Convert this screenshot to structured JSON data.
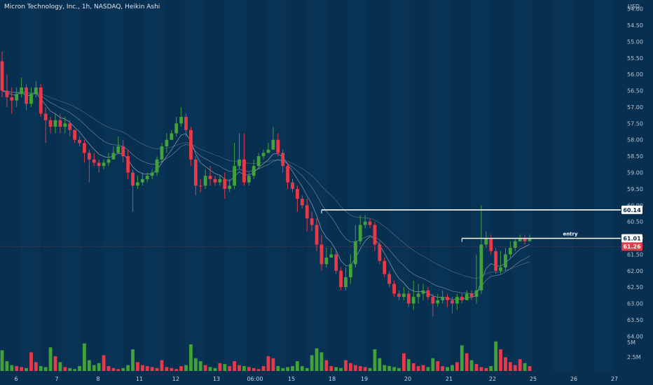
{
  "header": {
    "title": "Micron Technology, Inc., 1h, NASDAQ, Heikin Ashi",
    "currency": "USD"
  },
  "chart_data": {
    "type": "candlestick",
    "chart_style": "Heikin Ashi",
    "timeframe": "1h",
    "y_axis_inverted": true,
    "ylim": [
      53.9,
      64.1
    ],
    "y_ticks": [
      "54.00",
      "54.50",
      "55.00",
      "55.50",
      "56.00",
      "56.50",
      "57.00",
      "57.50",
      "58.00",
      "58.50",
      "59.00",
      "59.50",
      "60.00",
      "60.50",
      "61.00",
      "61.50",
      "62.00",
      "62.50",
      "63.00",
      "63.50",
      "64.00"
    ],
    "x_tick_labels": [
      "6",
      "7",
      "8",
      "11",
      "12",
      "13",
      "06:00",
      "15",
      "18",
      "19",
      "20",
      "21",
      "22",
      "25",
      "26",
      "27"
    ],
    "volume_axis_labels": [
      "5M",
      "2.5M"
    ],
    "colors": {
      "background": "#072f50",
      "up": "#41a23a",
      "down": "#e8394a",
      "line": "#ffffff",
      "price_badge": "#e8394a",
      "level_badge": "#ffffff"
    },
    "ohlc": [
      [
        55.6,
        56.5,
        55.3,
        56.7
      ],
      [
        56.5,
        56.7,
        56.0,
        57.0
      ],
      [
        56.7,
        56.8,
        56.4,
        57.2
      ],
      [
        56.8,
        56.6,
        56.4,
        57.0
      ],
      [
        56.6,
        56.4,
        56.1,
        56.7
      ],
      [
        56.4,
        56.9,
        56.3,
        57.1
      ],
      [
        56.9,
        56.6,
        56.4,
        57.0
      ],
      [
        56.6,
        56.4,
        56.2,
        56.7
      ],
      [
        56.4,
        57.2,
        56.3,
        57.3
      ],
      [
        57.2,
        57.4,
        57.0,
        58.1
      ],
      [
        57.4,
        57.6,
        57.3,
        57.8
      ],
      [
        57.6,
        57.4,
        57.2,
        57.8
      ],
      [
        57.4,
        57.6,
        57.2,
        57.8
      ],
      [
        57.6,
        57.5,
        57.3,
        57.8
      ],
      [
        57.5,
        57.7,
        57.4,
        57.9
      ],
      [
        57.7,
        58.0,
        57.7,
        58.1
      ],
      [
        58.0,
        58.1,
        57.9,
        58.2
      ],
      [
        58.1,
        58.4,
        58.0,
        58.7
      ],
      [
        58.4,
        58.6,
        58.3,
        59.3
      ],
      [
        58.6,
        58.7,
        58.4,
        58.8
      ],
      [
        58.7,
        58.8,
        58.6,
        59.0
      ],
      [
        58.8,
        58.7,
        58.6,
        58.9
      ],
      [
        58.7,
        58.6,
        58.4,
        58.8
      ],
      [
        58.6,
        58.4,
        58.2,
        58.6
      ],
      [
        58.4,
        58.2,
        57.9,
        58.3
      ],
      [
        58.2,
        58.5,
        58.0,
        58.7
      ],
      [
        58.5,
        59.0,
        58.3,
        59.2
      ],
      [
        59.0,
        59.4,
        58.9,
        60.2
      ],
      [
        59.4,
        59.3,
        59.1,
        59.5
      ],
      [
        59.3,
        59.2,
        59.0,
        59.4
      ],
      [
        59.2,
        59.1,
        59.0,
        59.3
      ],
      [
        59.1,
        59.0,
        58.9,
        59.2
      ],
      [
        59.0,
        58.6,
        58.5,
        59.1
      ],
      [
        58.6,
        58.2,
        58.1,
        58.7
      ],
      [
        58.2,
        58.0,
        57.8,
        58.4
      ],
      [
        58.0,
        57.8,
        57.7,
        58.0
      ],
      [
        57.8,
        57.5,
        57.3,
        57.9
      ],
      [
        57.5,
        57.3,
        57.0,
        57.6
      ],
      [
        57.3,
        57.7,
        57.2,
        57.9
      ],
      [
        57.7,
        58.6,
        57.6,
        58.8
      ],
      [
        58.6,
        59.4,
        58.5,
        59.7
      ],
      [
        59.4,
        59.4,
        59.2,
        59.6
      ],
      [
        59.4,
        59.1,
        58.9,
        59.5
      ],
      [
        59.1,
        59.2,
        58.8,
        59.4
      ],
      [
        59.2,
        59.3,
        59.1,
        59.4
      ],
      [
        59.3,
        59.2,
        59.1,
        59.4
      ],
      [
        59.2,
        59.5,
        59.0,
        59.8
      ],
      [
        59.5,
        59.4,
        59.2,
        59.6
      ],
      [
        59.4,
        58.8,
        58.1,
        59.5
      ],
      [
        58.8,
        58.6,
        57.8,
        58.9
      ],
      [
        58.6,
        59.3,
        57.8,
        59.4
      ],
      [
        59.3,
        59.1,
        59.0,
        59.4
      ],
      [
        59.1,
        58.8,
        58.6,
        59.2
      ],
      [
        58.8,
        58.5,
        58.4,
        58.9
      ],
      [
        58.5,
        58.4,
        58.3,
        58.6
      ],
      [
        58.4,
        58.3,
        58.1,
        58.4
      ],
      [
        58.3,
        58.0,
        57.6,
        58.3
      ],
      [
        58.0,
        58.4,
        57.8,
        58.5
      ],
      [
        58.4,
        58.8,
        58.3,
        59.0
      ],
      [
        58.8,
        59.3,
        58.7,
        59.5
      ],
      [
        59.3,
        59.5,
        59.2,
        59.6
      ],
      [
        59.5,
        59.8,
        59.4,
        60.2
      ],
      [
        59.8,
        60.0,
        59.7,
        60.1
      ],
      [
        60.0,
        60.4,
        59.8,
        60.8
      ],
      [
        60.4,
        60.6,
        60.2,
        60.8
      ],
      [
        60.6,
        61.2,
        60.4,
        61.4
      ],
      [
        61.2,
        61.8,
        60.9,
        62.0
      ],
      [
        61.8,
        61.6,
        61.3,
        61.9
      ],
      [
        61.6,
        61.5,
        61.3,
        61.6
      ],
      [
        61.5,
        62.0,
        61.4,
        62.1
      ],
      [
        62.0,
        62.5,
        61.9,
        62.6
      ],
      [
        62.5,
        62.2,
        61.9,
        62.6
      ],
      [
        62.2,
        61.8,
        61.5,
        62.4
      ],
      [
        61.8,
        61.1,
        60.6,
        61.9
      ],
      [
        61.1,
        60.6,
        60.3,
        61.2
      ],
      [
        60.6,
        60.5,
        60.3,
        60.7
      ],
      [
        60.5,
        60.6,
        60.4,
        60.7
      ],
      [
        60.6,
        61.2,
        60.5,
        61.4
      ],
      [
        61.2,
        61.7,
        61.1,
        61.8
      ],
      [
        61.7,
        62.1,
        61.6,
        62.2
      ],
      [
        62.1,
        62.4,
        62.0,
        62.5
      ],
      [
        62.4,
        62.7,
        62.3,
        62.8
      ],
      [
        62.7,
        62.8,
        62.6,
        62.9
      ],
      [
        62.8,
        62.7,
        62.5,
        62.9
      ],
      [
        62.7,
        63.0,
        62.6,
        63.1
      ],
      [
        63.0,
        62.8,
        62.3,
        63.2
      ],
      [
        62.8,
        62.7,
        62.4,
        63.0
      ],
      [
        62.7,
        62.6,
        62.4,
        62.9
      ],
      [
        62.6,
        62.8,
        62.5,
        62.9
      ],
      [
        62.8,
        63.0,
        62.7,
        63.4
      ],
      [
        63.0,
        62.9,
        62.7,
        63.1
      ],
      [
        62.9,
        62.8,
        62.6,
        63.0
      ],
      [
        62.8,
        62.9,
        62.7,
        63.1
      ],
      [
        62.9,
        63.0,
        62.8,
        63.3
      ],
      [
        63.0,
        62.8,
        62.7,
        63.2
      ],
      [
        62.8,
        62.9,
        62.7,
        63.0
      ],
      [
        62.9,
        62.7,
        62.6,
        62.9
      ],
      [
        62.7,
        62.8,
        62.6,
        62.9
      ],
      [
        62.8,
        62.6,
        61.5,
        63.0
      ],
      [
        62.6,
        61.2,
        60.0,
        62.7
      ],
      [
        61.2,
        61.0,
        60.8,
        61.3
      ],
      [
        61.0,
        61.4,
        60.9,
        61.5
      ],
      [
        61.4,
        62.0,
        61.3,
        62.1
      ],
      [
        62.0,
        61.9,
        61.4,
        62.1
      ],
      [
        61.9,
        61.5,
        61.3,
        62.0
      ],
      [
        61.5,
        61.3,
        61.1,
        61.6
      ],
      [
        61.3,
        61.1,
        61.0,
        61.4
      ],
      [
        61.1,
        61.0,
        60.9,
        61.1
      ],
      [
        61.0,
        61.1,
        60.9,
        61.2
      ],
      [
        61.1,
        61.0,
        60.9,
        61.1
      ]
    ],
    "volume": [
      2.1,
      1.0,
      0.6,
      0.5,
      0.4,
      0.3,
      1.9,
      0.9,
      0.5,
      0.4,
      2.4,
      1.5,
      0.9,
      0.4,
      0.3,
      0.2,
      0.5,
      2.8,
      1.1,
      0.6,
      0.8,
      1.6,
      0.5,
      0.3,
      0.2,
      0.3,
      0.6,
      2.2,
      0.9,
      0.6,
      0.5,
      0.4,
      0.3,
      1.1,
      0.4,
      0.3,
      0.2,
      0.5,
      0.6,
      2.7,
      1.3,
      1.0,
      0.6,
      0.4,
      0.3,
      0.8,
      0.7,
      0.5,
      1.0,
      0.6,
      0.5,
      0.4,
      0.3,
      0.2,
      0.5,
      1.5,
      1.3,
      0.5,
      0.3,
      0.4,
      0.5,
      1.0,
      0.5,
      0.3,
      1.6,
      2.3,
      1.9,
      1.1,
      0.5,
      0.4,
      0.3,
      1.1,
      0.8,
      0.6,
      0.5,
      0.4,
      0.3,
      2.2,
      1.3,
      0.6,
      0.5,
      0.4,
      0.3,
      1.8,
      1.2,
      0.8,
      0.5,
      0.6,
      0.4,
      1.3,
      1.0,
      0.5,
      0.4,
      0.6,
      0.9,
      2.6,
      1.8,
      1.1,
      0.7,
      0.4,
      0.3,
      0.5,
      3.0,
      2.2,
      1.4,
      0.9,
      0.6,
      1.2,
      0.8,
      0.5
    ],
    "horizontal_lines": [
      {
        "price": 60.14,
        "start_bar": 66
      },
      {
        "price": 61.01,
        "start_bar": 95,
        "label": "entry"
      }
    ],
    "price_badges": [
      {
        "label": "60.14",
        "price": 60.14,
        "style": "level"
      },
      {
        "label": "61.01",
        "price": 61.01,
        "style": "level"
      },
      {
        "label": "61.26",
        "price": 61.26,
        "style": "current"
      }
    ],
    "current_price": 61.26
  }
}
